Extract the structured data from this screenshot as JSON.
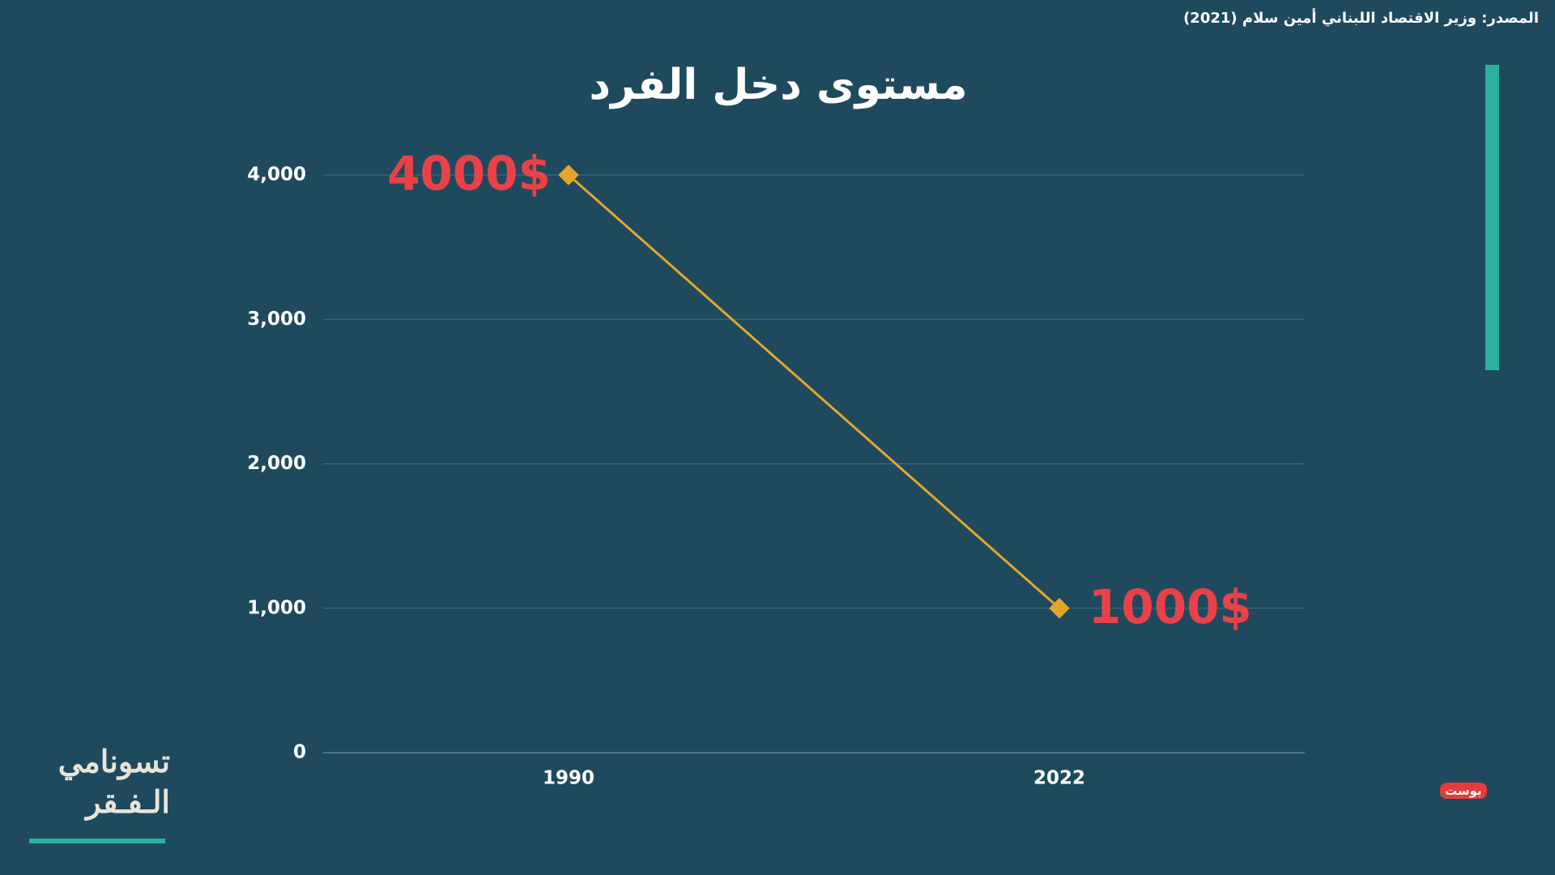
{
  "chart_data": {
    "type": "line",
    "title": "مستوى دخل الفرد",
    "source": "المصدر: وزير الاقتصاد اللبناني أمين سلام (2021)",
    "categories": [
      "1990",
      "2022"
    ],
    "values": [
      4000,
      1000
    ],
    "value_labels": [
      "4000$",
      "1000$"
    ],
    "color": "#e3a62a",
    "label_color": "#ea4148",
    "ylim": [
      0,
      4000
    ],
    "yticks": [
      0,
      {
        "value": 1000,
        "label": "1,000"
      },
      {
        "value": 2000,
        "label": "2,000"
      },
      {
        "value": 3000,
        "label": "3,000"
      },
      {
        "value": 4000,
        "label": "4,000"
      }
    ],
    "grid": true
  },
  "branding": {
    "series_title": [
      "تسونامي",
      "الـفـقر"
    ],
    "logo": "بوست"
  }
}
